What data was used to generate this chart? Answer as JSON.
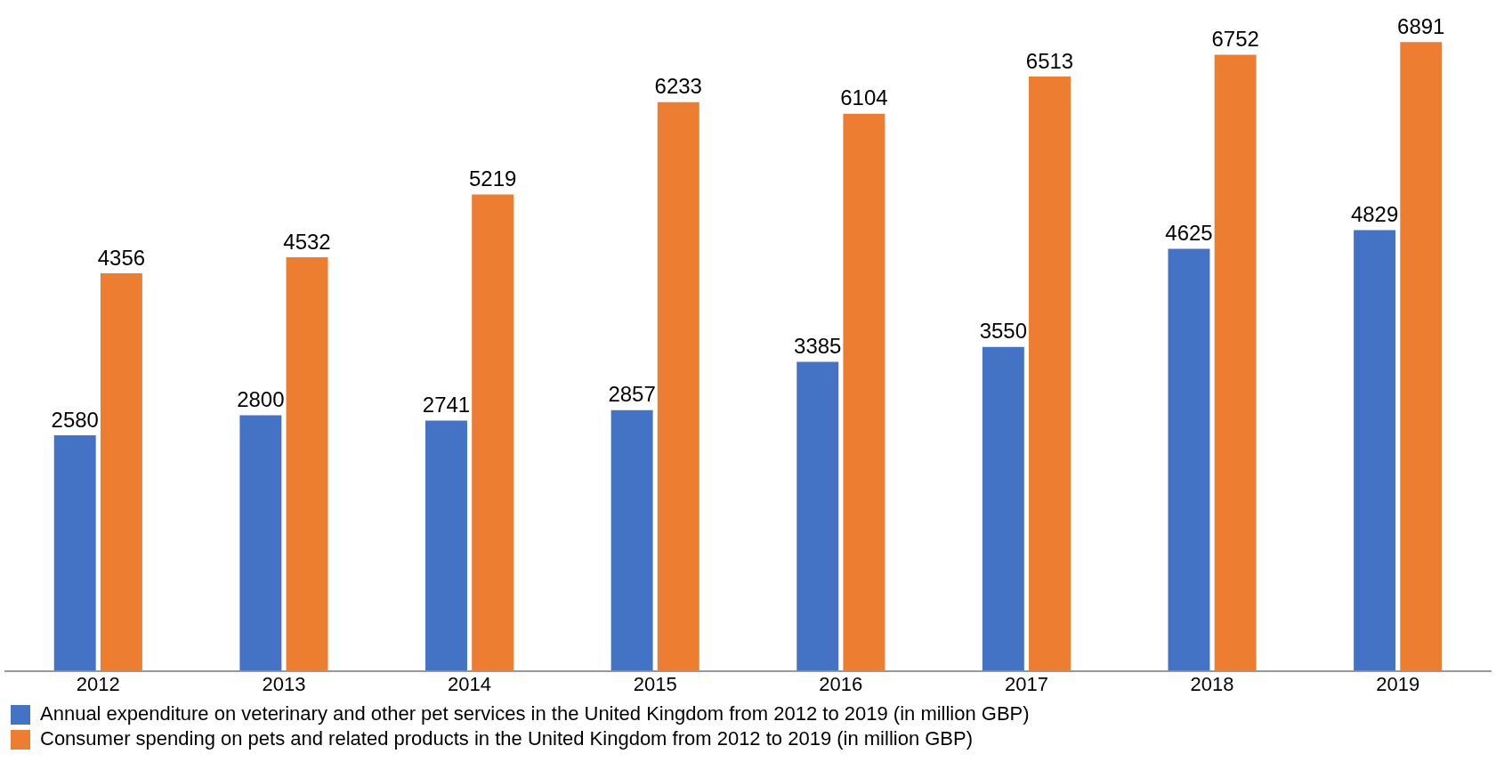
{
  "chart_data": {
    "type": "bar",
    "categories": [
      "2012",
      "2013",
      "2014",
      "2015",
      "2016",
      "2017",
      "2018",
      "2019"
    ],
    "series": [
      {
        "name": "Annual expenditure on veterinary and other pet services in the United Kingdom from 2012 to 2019 (in million GBP)",
        "color": "#4472c4",
        "values": [
          2580,
          2800,
          2741,
          2857,
          3385,
          3550,
          4625,
          4829
        ]
      },
      {
        "name": "Consumer spending on pets and related products in the United Kingdom from 2012 to 2019 (in million GBP)",
        "color": "#ed7d31",
        "values": [
          4356,
          4532,
          5219,
          6233,
          6104,
          6513,
          6752,
          6891
        ]
      }
    ],
    "data_labels": true,
    "legend": "bottom",
    "grid": false,
    "tick_labels": "x"
  }
}
